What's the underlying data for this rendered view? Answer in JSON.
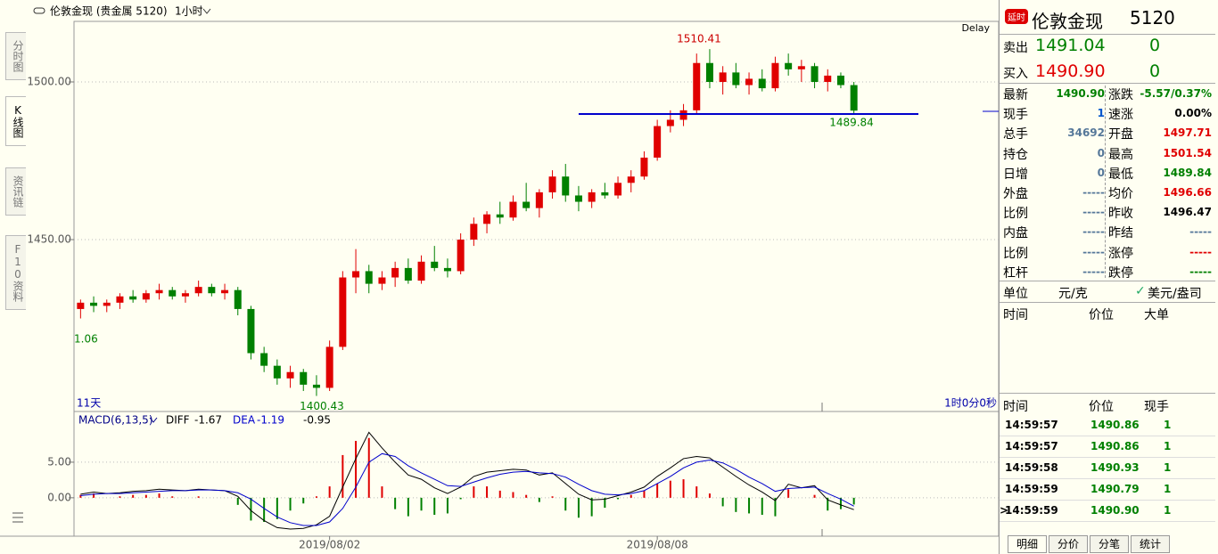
{
  "toolbar": {
    "symbol": "伦敦金现 (贵金属  5120)",
    "period": "1小时"
  },
  "side_tabs": [
    "分时图",
    "K线图",
    "资讯链",
    "F10资料"
  ],
  "chart": {
    "type": "candlestick",
    "delay": "Delay",
    "range_label": "11天",
    "countdown": "1时0分0秒",
    "left_label": "1.06",
    "categories": [
      null,
      null,
      null,
      null,
      null,
      null,
      null,
      null,
      null,
      null,
      null,
      null,
      null,
      null,
      null,
      null,
      null,
      null,
      null,
      "2019/08/02",
      null,
      null,
      null,
      null,
      null,
      null,
      null,
      null,
      null,
      null,
      null,
      null,
      null,
      null,
      null,
      null,
      null,
      null,
      null,
      null,
      null,
      null,
      null,
      null,
      "2019/08/08",
      null,
      null,
      null,
      null,
      null,
      null,
      null,
      null,
      null,
      null,
      null,
      null,
      null,
      null,
      null
    ],
    "open": [
      1428,
      1430,
      1429,
      1430,
      1432,
      1431,
      1433,
      1434,
      1432,
      1433,
      1435,
      1433,
      1434,
      1428,
      1414,
      1410,
      1406,
      1408,
      1404,
      1403,
      1416,
      1438,
      1440,
      1436,
      1438,
      1441,
      1437,
      1443,
      1441,
      1440,
      1450,
      1455,
      1458,
      1457,
      1462,
      1460,
      1465,
      1470,
      1464,
      1462,
      1465,
      1464,
      1468,
      1470,
      1476,
      1486,
      1488,
      1491,
      1506,
      1500,
      1503,
      1499,
      1501,
      1498,
      1506,
      1504,
      1505,
      1500,
      1502,
      1499
    ],
    "high": [
      1431,
      1432,
      1431,
      1433,
      1434,
      1434,
      1436,
      1435,
      1434,
      1437,
      1436,
      1436,
      1435,
      1429,
      1416,
      1412,
      1410,
      1409,
      1407,
      1418,
      1440,
      1447,
      1442,
      1440,
      1443,
      1444,
      1445,
      1448,
      1444,
      1452,
      1457,
      1459,
      1462,
      1464,
      1468,
      1466,
      1472,
      1474,
      1467,
      1466,
      1468,
      1470,
      1472,
      1478,
      1488,
      1491,
      1493,
      1509,
      1510.41,
      1505,
      1506,
      1503,
      1504,
      1508,
      1509,
      1507,
      1506,
      1504,
      1503,
      1500
    ],
    "low": [
      1425,
      1427,
      1427,
      1428,
      1430,
      1430,
      1431,
      1431,
      1430,
      1432,
      1432,
      1431,
      1426,
      1412,
      1408,
      1404,
      1403,
      1402,
      1400.43,
      1402,
      1415,
      1433,
      1433,
      1434,
      1435,
      1436,
      1436,
      1440,
      1438,
      1439,
      1448,
      1452,
      1455,
      1456,
      1459,
      1457,
      1463,
      1462,
      1459,
      1460,
      1463,
      1463,
      1465,
      1469,
      1475,
      1484,
      1486,
      1490,
      1498,
      1496,
      1498,
      1496,
      1497,
      1497,
      1502,
      1500,
      1498,
      1497,
      1498,
      1489.84
    ],
    "close": [
      1430,
      1429,
      1430,
      1432,
      1431,
      1433,
      1434,
      1432,
      1433,
      1435,
      1433,
      1434,
      1428,
      1414,
      1410,
      1406,
      1408,
      1404,
      1403,
      1416,
      1438,
      1440,
      1436,
      1438,
      1441,
      1437,
      1443,
      1441,
      1440,
      1450,
      1455,
      1458,
      1457,
      1462,
      1460,
      1465,
      1470,
      1464,
      1462,
      1465,
      1464,
      1468,
      1470,
      1476,
      1486,
      1488,
      1491,
      1506,
      1500,
      1503,
      1499,
      1501,
      1498,
      1506,
      1504,
      1505,
      1500,
      1502,
      1499,
      1490.9
    ],
    "up_color": "#e00000",
    "down_color": "#008000",
    "ylim": [
      1395.5,
      1519.2
    ],
    "yticks": [
      {
        "value": 1450,
        "label": "1450.00"
      },
      {
        "value": 1500,
        "label": "1500.00"
      }
    ],
    "grid": true,
    "support_line": 1489.84,
    "support_color": "#0000cc",
    "macd": {
      "title": "MACD(6,13,5)",
      "diff_label": "DIFF",
      "dea_label": "DEA",
      "diff": [
        0.5,
        0.8,
        0.6,
        0.7,
        0.9,
        1.0,
        1.2,
        1.1,
        1.0,
        1.2,
        1.1,
        1.0,
        0.2,
        -1.8,
        -3.2,
        -4.2,
        -4.4,
        -4.3,
        -3.8,
        -2.6,
        1.5,
        5.5,
        9.2,
        7.0,
        5.0,
        3.2,
        2.6,
        1.4,
        0.6,
        1.5,
        3.0,
        3.6,
        3.8,
        4.0,
        3.9,
        3.2,
        3.5,
        2.0,
        0.5,
        -0.3,
        -0.2,
        0.3,
        0.8,
        1.5,
        3.0,
        4.2,
        5.5,
        5.8,
        5.6,
        4.3,
        3.0,
        1.8,
        0.8,
        -0.4,
        1.9,
        1.4,
        1.7,
        -0.3,
        -1.0,
        -1.67
      ],
      "dea": [
        0.3,
        0.5,
        0.6,
        0.6,
        0.7,
        0.8,
        0.9,
        1.0,
        1.0,
        1.1,
        1.1,
        1.0,
        0.7,
        -0.2,
        -1.5,
        -2.7,
        -3.5,
        -3.9,
        -3.9,
        -3.4,
        -1.5,
        1.5,
        5.0,
        6.2,
        5.8,
        4.5,
        3.5,
        2.6,
        1.7,
        1.6,
        2.2,
        2.8,
        3.3,
        3.6,
        3.7,
        3.5,
        3.4,
        2.9,
        1.9,
        1.0,
        0.5,
        0.4,
        0.6,
        1.0,
        2.0,
        3.0,
        4.2,
        5.0,
        5.3,
        4.9,
        4.0,
        2.9,
        2.0,
        0.9,
        1.3,
        1.4,
        1.5,
        0.6,
        -0.2,
        -1.19
      ],
      "macd": [
        0.4,
        0.6,
        0,
        0.2,
        0.4,
        0.4,
        0.6,
        0.2,
        0,
        0.2,
        0,
        0,
        -1.0,
        -3.2,
        -3.4,
        -3.0,
        -1.8,
        -0.8,
        0.2,
        1.6,
        6.0,
        8.0,
        8.4,
        1.6,
        -1.6,
        -2.6,
        -1.8,
        -2.4,
        -2.2,
        -0.2,
        1.6,
        1.6,
        1.0,
        0.8,
        0.4,
        -0.6,
        0.2,
        -1.8,
        -2.8,
        -2.6,
        -1.4,
        -0.2,
        0.4,
        1.0,
        2.0,
        2.4,
        2.6,
        1.6,
        0.6,
        -1.2,
        -2.0,
        -2.2,
        -2.4,
        -2.6,
        1.2,
        0,
        0.4,
        -1.8,
        -1.6,
        -0.95
      ],
      "diff_color": "#000000",
      "dea_color": "#0000cc",
      "ylim": [
        -5.4,
        12
      ],
      "yticks": [
        {
          "value": 0,
          "label": "0.00"
        },
        {
          "value": 5,
          "label": "5.00"
        }
      ]
    }
  },
  "quote": {
    "badge": "延时",
    "name": "伦敦金现",
    "code": "5120",
    "sell_label": "卖出",
    "sell": "1491.04",
    "sell_vol": "0",
    "buy_label": "买入",
    "buy": "1490.90",
    "buy_vol": "0",
    "rows": [
      [
        "最新",
        "1490.90",
        "涨跌",
        "-5.57/0.37%"
      ],
      [
        "现手",
        "1",
        "速涨",
        "0.00%"
      ],
      [
        "总手",
        "34692",
        "开盘",
        "1497.71"
      ],
      [
        "持仓",
        "0",
        "最高",
        "1501.54"
      ],
      [
        "日增",
        "0",
        "最低",
        "1489.84"
      ],
      [
        "外盘",
        "-----",
        "均价",
        "1496.66"
      ],
      [
        "比例",
        "-----",
        "昨收",
        "1496.47"
      ],
      [
        "内盘",
        "-----",
        "昨结",
        "-----"
      ],
      [
        "比例",
        "-----",
        "涨停",
        "-----"
      ],
      [
        "杠杆",
        "-----",
        "跌停",
        "-----"
      ]
    ],
    "row_colors": [
      [
        "#008000",
        "#008000"
      ],
      [
        "#0055cc",
        "#000000"
      ],
      [
        "#557799",
        "#e00000"
      ],
      [
        "#557799",
        "#e00000"
      ],
      [
        "#557799",
        "#008000"
      ],
      [
        "#557799",
        "#e00000"
      ],
      [
        "#557799",
        "#000000"
      ],
      [
        "#557799",
        "#557799"
      ],
      [
        "#557799",
        "#e00000"
      ],
      [
        "#557799",
        "#008000"
      ]
    ],
    "unit_label": "单位",
    "unit1": "元/克",
    "unit2": "美元/盎司",
    "big_headers": [
      "时间",
      "价位",
      "大单"
    ],
    "trade_headers": [
      "时间",
      "价位",
      "现手"
    ],
    "trades": [
      [
        "14:59:57",
        "1490.86",
        "1"
      ],
      [
        "14:59:57",
        "1490.86",
        "1"
      ],
      [
        "14:59:58",
        "1490.93",
        "1"
      ],
      [
        "14:59:59",
        "1490.79",
        "1"
      ],
      [
        "14:59:59",
        "1490.90",
        "1"
      ]
    ],
    "tabs": [
      "明细",
      "分价",
      "分笔",
      "统计"
    ]
  }
}
